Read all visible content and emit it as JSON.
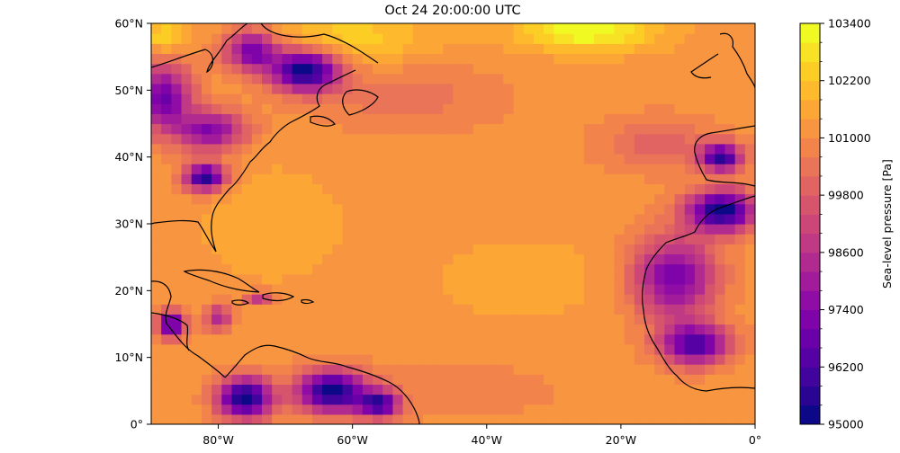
{
  "title": "Oct 24 20:00:00 UTC",
  "map": {
    "projection": "PlateCarree",
    "lon_range": [
      -90,
      0
    ],
    "lat_range": [
      0,
      60
    ],
    "x_ticks": [
      {
        "lon": -80,
        "label": "80°W"
      },
      {
        "lon": -60,
        "label": "60°W"
      },
      {
        "lon": -40,
        "label": "40°W"
      },
      {
        "lon": -20,
        "label": "20°W"
      },
      {
        "lon": 0,
        "label": "0°"
      }
    ],
    "y_ticks": [
      {
        "lat": 0,
        "label": "0°"
      },
      {
        "lat": 10,
        "label": "10°N"
      },
      {
        "lat": 20,
        "label": "20°N"
      },
      {
        "lat": 30,
        "label": "30°N"
      },
      {
        "lat": 40,
        "label": "40°N"
      },
      {
        "lat": 50,
        "label": "50°N"
      },
      {
        "lat": 60,
        "label": "60°N"
      }
    ]
  },
  "colorbar": {
    "label": "Sea-level pressure [Pa]",
    "colormap": "plasma",
    "range": [
      95000,
      103400
    ],
    "ticks": [
      {
        "value": 95000,
        "label": "95000"
      },
      {
        "value": 96200,
        "label": "96200"
      },
      {
        "value": 97400,
        "label": "97400"
      },
      {
        "value": 98600,
        "label": "98600"
      },
      {
        "value": 99800,
        "label": "99800"
      },
      {
        "value": 101000,
        "label": "101000"
      },
      {
        "value": 102200,
        "label": "102200"
      },
      {
        "value": 103400,
        "label": "103400"
      }
    ],
    "colors": [
      "#0d0887",
      "#2a0593",
      "#41049d",
      "#5601a4",
      "#6a00a8",
      "#7e03a8",
      "#8f0da4",
      "#a11b9b",
      "#b12a90",
      "#bf3984",
      "#cc4778",
      "#d6556d",
      "#e16462",
      "#ea7457",
      "#f2844b",
      "#f89540",
      "#fca636",
      "#feba2c",
      "#fcce25",
      "#f7e225",
      "#f0f921"
    ]
  },
  "field": {
    "description": "sea-level pressure",
    "background_value": 101200,
    "features": [
      {
        "lon": -67,
        "lat": 53,
        "value": 95000,
        "spread_lon": 5,
        "spread_lat": 3
      },
      {
        "lon": -75,
        "lat": 56,
        "value": 97000,
        "spread_lon": 4,
        "spread_lat": 3
      },
      {
        "lon": -88,
        "lat": 49,
        "value": 97000,
        "spread_lon": 4,
        "spread_lat": 5
      },
      {
        "lon": -81,
        "lat": 44,
        "value": 97400,
        "spread_lon": 5,
        "spread_lat": 3
      },
      {
        "lon": -82,
        "lat": 37,
        "value": 95500,
        "spread_lon": 3,
        "spread_lat": 2
      },
      {
        "lon": -74,
        "lat": 19,
        "value": 98600,
        "spread_lon": 2,
        "spread_lat": 1
      },
      {
        "lon": -80,
        "lat": 16,
        "value": 98400,
        "spread_lon": 2,
        "spread_lat": 2
      },
      {
        "lon": -87,
        "lat": 15,
        "value": 96000,
        "spread_lon": 2,
        "spread_lat": 2
      },
      {
        "lon": -76,
        "lat": 4,
        "value": 95000,
        "spread_lon": 4,
        "spread_lat": 3
      },
      {
        "lon": -63,
        "lat": 5,
        "value": 95000,
        "spread_lon": 5,
        "spread_lat": 3
      },
      {
        "lon": -56,
        "lat": 3,
        "value": 96200,
        "spread_lon": 3,
        "spread_lat": 2
      },
      {
        "lon": -5,
        "lat": 32,
        "value": 95000,
        "spread_lon": 5,
        "spread_lat": 3
      },
      {
        "lon": -5,
        "lat": 40,
        "value": 95800,
        "spread_lon": 3,
        "spread_lat": 2
      },
      {
        "lon": -12,
        "lat": 22,
        "value": 97000,
        "spread_lon": 6,
        "spread_lat": 6
      },
      {
        "lon": -9,
        "lat": 12,
        "value": 96300,
        "spread_lon": 5,
        "spread_lat": 3
      },
      {
        "lon": -60,
        "lat": 58,
        "value": 102400,
        "spread_lon": 12,
        "spread_lat": 4
      },
      {
        "lon": -25,
        "lat": 59,
        "value": 103400,
        "spread_lon": 10,
        "spread_lat": 3
      },
      {
        "lon": -88,
        "lat": 58,
        "value": 102800,
        "spread_lon": 3,
        "spread_lat": 2
      },
      {
        "lon": -52,
        "lat": 49,
        "value": 100400,
        "spread_lon": 14,
        "spread_lat": 5
      },
      {
        "lon": -14,
        "lat": 42,
        "value": 100000,
        "spread_lon": 9,
        "spread_lat": 4
      },
      {
        "lon": -72,
        "lat": 30,
        "value": 101800,
        "spread_lon": 10,
        "spread_lat": 8
      },
      {
        "lon": -35,
        "lat": 22,
        "value": 101700,
        "spread_lon": 12,
        "spread_lat": 6
      },
      {
        "lon": -45,
        "lat": 5,
        "value": 100800,
        "spread_lon": 18,
        "spread_lat": 5
      }
    ]
  }
}
